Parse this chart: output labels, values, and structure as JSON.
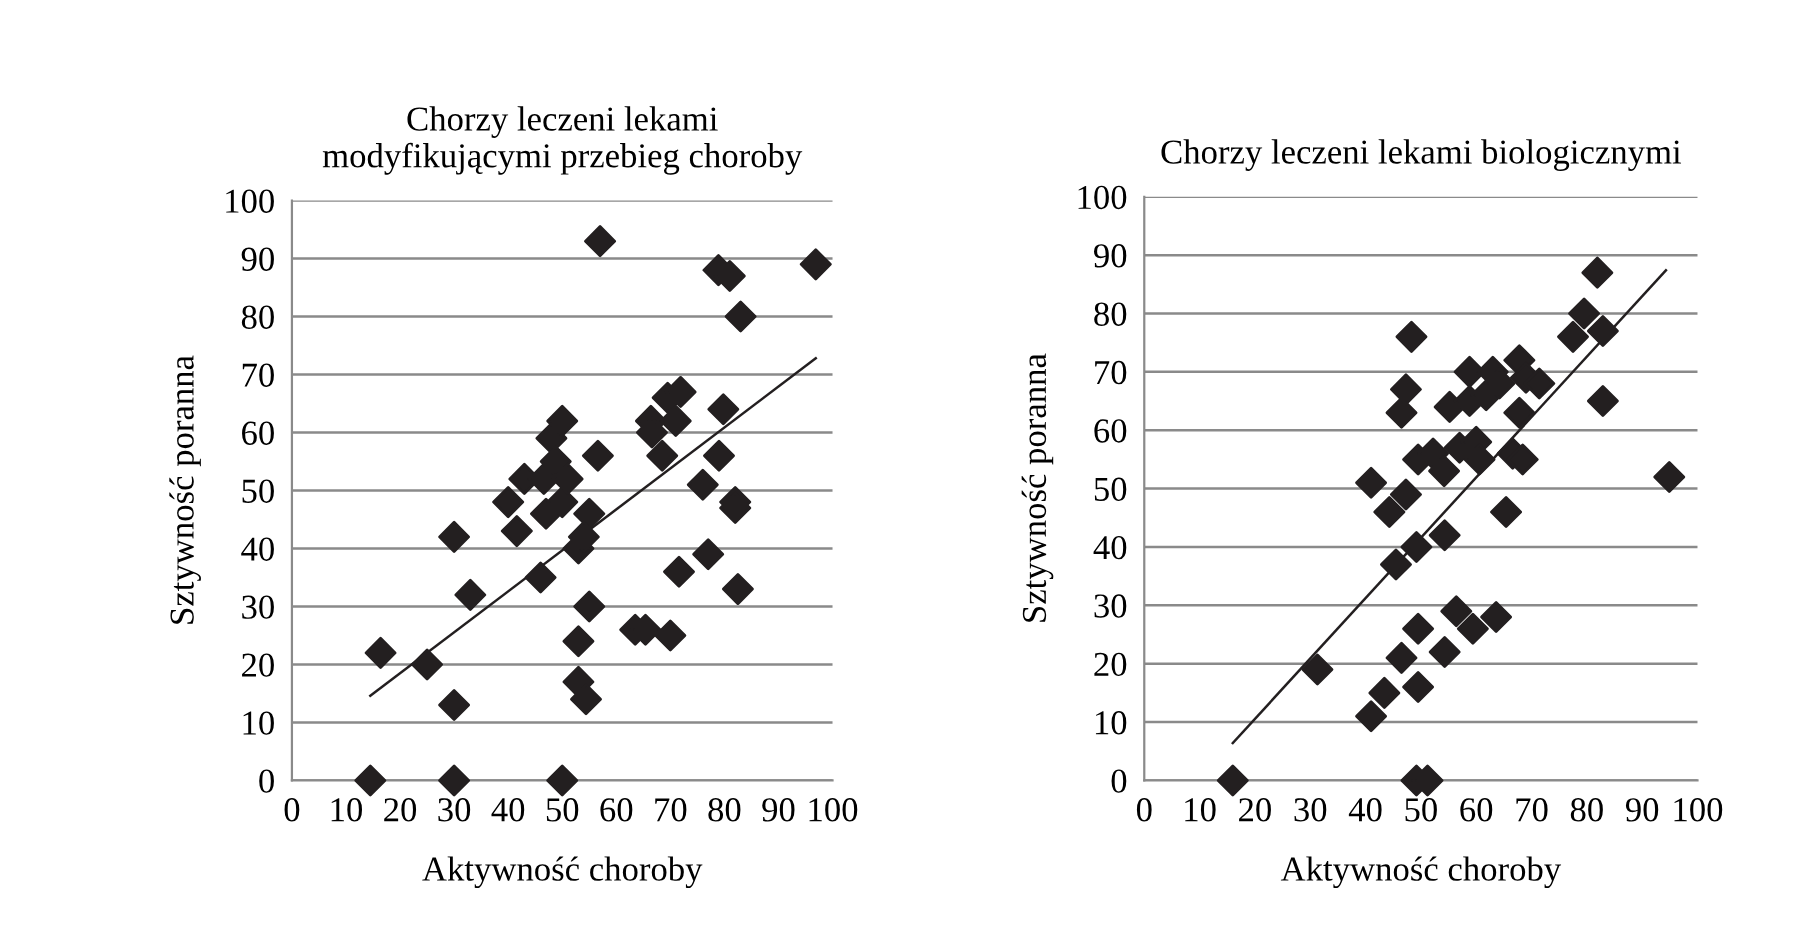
{
  "chart_data": [
    {
      "type": "scatter",
      "title": "Chorzy leczeni lekami\nmodyfikującymi przebieg choroby",
      "xlabel": "Aktywność choroby",
      "ylabel": "Sztywność poranna",
      "xlim": [
        0,
        100
      ],
      "ylim": [
        0,
        100
      ],
      "xticks": [
        0,
        10,
        20,
        30,
        40,
        50,
        60,
        70,
        80,
        90,
        100
      ],
      "yticks": [
        0,
        10,
        20,
        30,
        40,
        50,
        60,
        70,
        80,
        90,
        100
      ],
      "grid": "y",
      "series": [
        {
          "marker": "diamond",
          "color": "#231f20",
          "x": [
            14.5,
            16.4,
            25,
            30,
            30,
            30,
            33,
            40,
            41.6,
            43,
            46,
            46.6,
            47,
            48,
            48.8,
            50,
            50,
            50,
            51,
            53,
            53,
            53,
            54.4,
            55,
            55,
            54,
            56.6,
            57,
            63.5,
            65.4,
            66.4,
            66.6,
            68.5,
            69.5,
            70,
            71,
            71.9,
            71.6,
            76,
            77,
            78.9,
            81,
            79.8,
            79,
            82,
            82,
            82.5,
            83,
            96.9
          ],
          "values": [
            0,
            22,
            20,
            42,
            13,
            0,
            32,
            48,
            43,
            52,
            35,
            52,
            46,
            59,
            55,
            62,
            48,
            0,
            52,
            40,
            24,
            17,
            14,
            46,
            30,
            42,
            56,
            93,
            26,
            26,
            62,
            60,
            56,
            66,
            25,
            62,
            67,
            36,
            51,
            39,
            88,
            87,
            64,
            56,
            48,
            47,
            33,
            80,
            89
          ]
        },
        {
          "type": "line",
          "color": "#231f20",
          "x": [
            14.5,
            96.9
          ],
          "values": [
            14.6,
            72.8
          ]
        }
      ]
    },
    {
      "type": "scatter",
      "title": "Chorzy leczeni lekami biologicznymi",
      "xlabel": "Aktywność choroby",
      "ylabel": "Sztywność poranna",
      "xlim": [
        0,
        100
      ],
      "ylim": [
        0,
        100
      ],
      "xticks": [
        0,
        10,
        20,
        30,
        40,
        50,
        60,
        70,
        80,
        90,
        100
      ],
      "yticks": [
        0,
        10,
        20,
        30,
        40,
        50,
        60,
        70,
        80,
        90,
        100
      ],
      "grid": "y",
      "series": [
        {
          "marker": "diamond",
          "color": "#231f20",
          "x": [
            16,
            31.3,
            41,
            41,
            43.4,
            44.3,
            45.5,
            46.5,
            46.5,
            47.3,
            47.3,
            48.3,
            49.2,
            49.5,
            49.5,
            49.5,
            49.2,
            51.2,
            52.2,
            54.2,
            54.3,
            54.3,
            55.2,
            56.4,
            57,
            58.8,
            58.8,
            59.4,
            60,
            60.6,
            61.8,
            63,
            63.6,
            64.2,
            65.4,
            66.6,
            67.8,
            67.8,
            68.4,
            69,
            71.4,
            77.5,
            79.5,
            81.9,
            82.9,
            82.9,
            94.9
          ],
          "values": [
            0,
            19,
            51,
            11,
            15,
            46,
            37,
            21,
            63,
            67,
            49,
            76,
            40,
            55,
            26,
            16,
            0,
            0,
            56,
            53,
            42,
            22,
            64,
            29,
            57,
            65,
            70,
            26,
            58,
            55,
            66,
            70,
            28,
            68,
            46,
            56,
            72,
            63,
            55,
            69,
            68,
            76,
            80,
            87,
            77,
            65,
            52
          ]
        },
        {
          "type": "line",
          "color": "#231f20",
          "x": [
            16,
            94.3
          ],
          "values": [
            6.4,
            87.4
          ]
        }
      ]
    }
  ]
}
